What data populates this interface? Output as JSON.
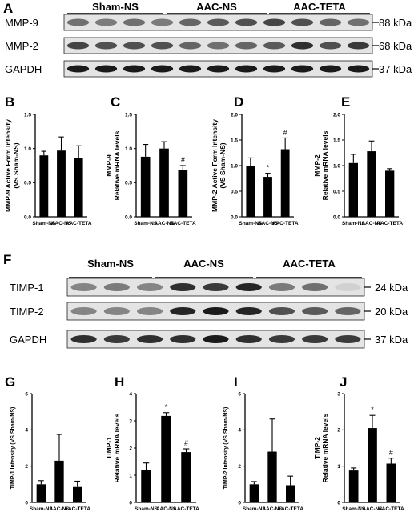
{
  "blots": [
    {
      "letter": "A",
      "groups": [
        "Sham-NS",
        "AAC-NS",
        "AAC-TETA"
      ],
      "rows": [
        {
          "protein": "MMP-9",
          "kda": "88 kDa",
          "intensity": [
            0.55,
            0.5,
            0.55,
            0.5,
            0.6,
            0.65,
            0.7,
            0.75,
            0.7,
            0.6,
            0.55
          ]
        },
        {
          "protein": "MMP-2",
          "kda": "68 kDa",
          "intensity": [
            0.75,
            0.7,
            0.7,
            0.7,
            0.6,
            0.55,
            0.6,
            0.65,
            0.85,
            0.7,
            0.8
          ]
        },
        {
          "protein": "GAPDH",
          "kda": "37 kDa",
          "intensity": [
            0.95,
            0.95,
            0.95,
            0.95,
            0.95,
            0.95,
            0.95,
            0.95,
            0.95,
            0.95,
            0.95
          ]
        }
      ]
    },
    {
      "letter": "F",
      "groups": [
        "Sham-NS",
        "AAC-NS",
        "AAC-TETA"
      ],
      "rows": [
        {
          "protein": "TIMP-1",
          "kda": "24 kDa",
          "intensity": [
            0.45,
            0.5,
            0.45,
            0.85,
            0.8,
            0.9,
            0.5,
            0.55,
            0.1
          ]
        },
        {
          "protein": "TIMP-2",
          "kda": "20 kDa",
          "intensity": [
            0.45,
            0.45,
            0.45,
            0.9,
            0.95,
            0.9,
            0.7,
            0.65,
            0.6
          ]
        },
        {
          "protein": "GAPDH",
          "kda": "37 kDa",
          "intensity": [
            0.85,
            0.8,
            0.85,
            0.85,
            0.95,
            0.85,
            0.8,
            0.8,
            0.8
          ]
        }
      ]
    }
  ],
  "chart_data": [
    {
      "letter": "B",
      "type": "bar",
      "categories": [
        "Sham-NS",
        "AAC-NS",
        "AAC-TETA"
      ],
      "values": [
        0.9,
        0.97,
        0.86
      ],
      "errors": [
        0.06,
        0.2,
        0.18
      ],
      "ylim": [
        0,
        1.5
      ],
      "yticks": [
        "0.0",
        "0.5",
        "1.0",
        "1.5"
      ],
      "ylabel_lines": [
        "MMP-9 Active Form Intensity",
        "(VS Sham-NS)"
      ],
      "sig": [
        "",
        "",
        ""
      ]
    },
    {
      "letter": "C",
      "type": "bar",
      "categories": [
        "Sham-NS",
        "AAC-NS",
        "AAC-TETA"
      ],
      "values": [
        0.88,
        1.0,
        0.68
      ],
      "errors": [
        0.18,
        0.1,
        0.07
      ],
      "ylim": [
        0,
        1.5
      ],
      "yticks": [
        "0.0",
        "0.5",
        "1.0",
        "1.5"
      ],
      "ylabel_lines": [
        "MMP-9",
        "Relative mRNA levels"
      ],
      "sig": [
        "",
        "",
        "#"
      ]
    },
    {
      "letter": "D",
      "type": "bar",
      "categories": [
        "Sham-NS",
        "AAC-NS",
        "AAC-TETA"
      ],
      "values": [
        1.0,
        0.78,
        1.32
      ],
      "errors": [
        0.15,
        0.07,
        0.22
      ],
      "ylim": [
        0,
        2.0
      ],
      "yticks": [
        "0.0",
        "0.5",
        "1.0",
        "1.5",
        "2.0"
      ],
      "ylabel_lines": [
        "MMP-2 Active Form Intensity",
        "(VS Sham-NS)"
      ],
      "sig": [
        "",
        "*",
        "#"
      ]
    },
    {
      "letter": "E",
      "type": "bar",
      "categories": [
        "Sham-NS",
        "AAC-NS",
        "AAC-TETA"
      ],
      "values": [
        1.05,
        1.28,
        0.9
      ],
      "errors": [
        0.17,
        0.2,
        0.04
      ],
      "ylim": [
        0,
        2.0
      ],
      "yticks": [
        "0.0",
        "0.5",
        "1.0",
        "1.5",
        "2.0"
      ],
      "ylabel_lines": [
        "MMP-2",
        "Relative mRNA levels"
      ],
      "sig": [
        "",
        "",
        ""
      ]
    },
    {
      "letter": "G",
      "type": "bar",
      "categories": [
        "Sham-NS",
        "AAC-NS",
        "AAC-TETA"
      ],
      "values": [
        1.0,
        2.3,
        0.85
      ],
      "errors": [
        0.2,
        1.45,
        0.32
      ],
      "ylim": [
        0,
        6
      ],
      "yticks": [
        "0",
        "2",
        "4",
        "6"
      ],
      "ylabel_lines": [
        "TIMP-1 Intensity (VS Sham-NS)"
      ],
      "sig": [
        "",
        "",
        ""
      ]
    },
    {
      "letter": "H",
      "type": "bar",
      "categories": [
        "Sham-NS",
        "AAC-NS",
        "AAC-TETA"
      ],
      "values": [
        1.2,
        3.18,
        1.85
      ],
      "errors": [
        0.25,
        0.12,
        0.12
      ],
      "ylim": [
        0,
        4
      ],
      "yticks": [
        "0",
        "1",
        "2",
        "3",
        "4"
      ],
      "ylabel_lines": [
        "TIMP-1",
        "Relative mRNA levels"
      ],
      "sig": [
        "",
        "*",
        "#"
      ]
    },
    {
      "letter": "I",
      "type": "bar",
      "categories": [
        "Sham-NS",
        "AAC-NS",
        "AAC-TETA"
      ],
      "values": [
        1.0,
        2.8,
        0.95
      ],
      "errors": [
        0.15,
        1.8,
        0.5
      ],
      "ylim": [
        0,
        6
      ],
      "yticks": [
        "0",
        "2",
        "4",
        "6"
      ],
      "ylabel_lines": [
        "TIMP-2 Intensity (VS Sham-NS)"
      ],
      "sig": [
        "",
        "",
        ""
      ]
    },
    {
      "letter": "J",
      "type": "bar",
      "categories": [
        "Sham-NS",
        "AAC-NS",
        "AAC-TETA"
      ],
      "values": [
        0.88,
        2.05,
        1.07
      ],
      "errors": [
        0.07,
        0.35,
        0.15
      ],
      "ylim": [
        0,
        3
      ],
      "yticks": [
        "0",
        "1",
        "2",
        "3"
      ],
      "ylabel_lines": [
        "TIMP-2",
        "Relative mRNA levels"
      ],
      "sig": [
        "",
        "*",
        "#"
      ]
    }
  ]
}
